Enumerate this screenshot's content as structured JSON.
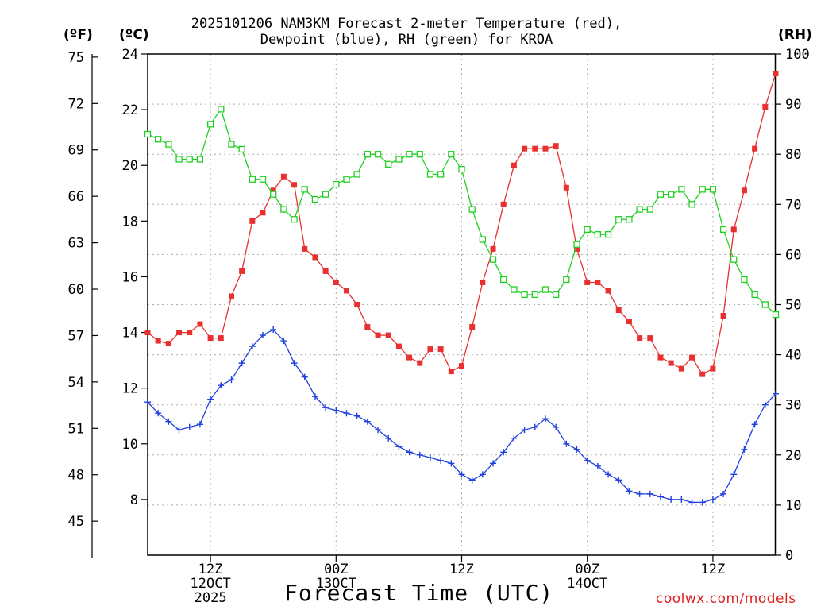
{
  "header": {
    "title_line1": "2025101206 NAM3KM Forecast 2-meter Temperature (red),",
    "title_line2": "Dewpoint (blue), RH (green) for KROA",
    "unit_f": "(ºF)",
    "unit_c": "(ºC)",
    "unit_rh": "(RH)",
    "xlabel": "Forecast Time (UTC)",
    "credit": "coolwx.com/models"
  },
  "chart_data": {
    "type": "line",
    "title": "2025101206 NAM3KM Forecast 2-meter Temperature (red), Dewpoint (blue), RH (green) for KROA",
    "xlabel": "Forecast Time (UTC)",
    "x_unit": "forecast hour from 2025101206",
    "x": [
      0,
      1,
      2,
      3,
      4,
      5,
      6,
      7,
      8,
      9,
      10,
      11,
      12,
      13,
      14,
      15,
      16,
      17,
      18,
      19,
      20,
      21,
      22,
      23,
      24,
      25,
      26,
      27,
      28,
      29,
      30,
      31,
      32,
      33,
      34,
      35,
      36,
      37,
      38,
      39,
      40,
      41,
      42,
      43,
      44,
      45,
      46,
      47,
      48,
      49,
      50,
      51,
      52,
      53,
      54,
      55,
      56,
      57,
      58,
      59,
      60
    ],
    "xlim": [
      0,
      60
    ],
    "grid": true,
    "x_ticks": [
      {
        "x": 6,
        "labels": [
          "12Z",
          "12OCT",
          "2025"
        ]
      },
      {
        "x": 18,
        "labels": [
          "00Z",
          "13OCT"
        ]
      },
      {
        "x": 30,
        "labels": [
          "12Z"
        ]
      },
      {
        "x": 42,
        "labels": [
          "00Z",
          "14OCT"
        ]
      },
      {
        "x": 54,
        "labels": [
          "12Z"
        ]
      }
    ],
    "y_left_c": {
      "label": "(ºC)",
      "lim": [
        6,
        24
      ],
      "ticks": [
        8,
        10,
        12,
        14,
        16,
        18,
        20,
        22,
        24
      ]
    },
    "y_left_f": {
      "label": "(ºF)",
      "ticks": [
        45,
        48,
        51,
        54,
        57,
        60,
        63,
        66,
        69,
        72,
        75
      ]
    },
    "y_right_rh": {
      "label": "(RH)",
      "lim": [
        0,
        100
      ],
      "ticks": [
        0,
        10,
        20,
        30,
        40,
        50,
        60,
        70,
        80,
        90,
        100
      ]
    },
    "series": [
      {
        "name": "2-meter Temperature",
        "axis": "c",
        "color": "#e83030",
        "marker": "filled-square",
        "values": [
          14.0,
          13.7,
          13.6,
          14.0,
          14.0,
          14.3,
          13.8,
          13.8,
          15.3,
          16.2,
          18.0,
          18.3,
          19.1,
          19.6,
          19.3,
          17.0,
          16.7,
          16.2,
          15.8,
          15.5,
          15.0,
          14.2,
          13.9,
          13.9,
          13.5,
          13.1,
          12.9,
          13.4,
          13.4,
          12.6,
          12.8,
          14.2,
          15.8,
          17.0,
          18.6,
          20.0,
          20.6,
          20.6,
          20.6,
          20.7,
          19.2,
          17.0,
          15.8,
          15.8,
          15.5,
          14.8,
          14.4,
          13.8,
          13.8,
          13.1,
          12.9,
          12.7,
          13.1,
          12.5,
          12.7,
          14.6,
          17.7,
          19.1,
          20.6,
          22.1,
          23.3
        ]
      },
      {
        "name": "Dewpoint",
        "axis": "c",
        "color": "#2040e0",
        "marker": "plus",
        "values": [
          11.5,
          11.1,
          10.8,
          10.5,
          10.6,
          10.7,
          11.6,
          12.1,
          12.3,
          12.9,
          13.5,
          13.9,
          14.1,
          13.7,
          12.9,
          12.4,
          11.7,
          11.3,
          11.2,
          11.1,
          11.0,
          10.8,
          10.5,
          10.2,
          9.9,
          9.7,
          9.6,
          9.5,
          9.4,
          9.3,
          8.9,
          8.7,
          8.9,
          9.3,
          9.7,
          10.2,
          10.5,
          10.6,
          10.9,
          10.6,
          10.0,
          9.8,
          9.4,
          9.2,
          8.9,
          8.7,
          8.3,
          8.2,
          8.2,
          8.1,
          8.0,
          8.0,
          7.9,
          7.9,
          8.0,
          8.2,
          8.9,
          9.8,
          10.7,
          11.4,
          11.8
        ]
      },
      {
        "name": "RH",
        "axis": "rh",
        "color": "#20d020",
        "marker": "open-square",
        "values": [
          84,
          83,
          82,
          79,
          79,
          79,
          86,
          89,
          82,
          81,
          75,
          75,
          72,
          69,
          67,
          73,
          71,
          72,
          74,
          75,
          76,
          80,
          80,
          78,
          79,
          80,
          80,
          76,
          76,
          80,
          77,
          69,
          63,
          59,
          55,
          53,
          52,
          52,
          53,
          52,
          55,
          62,
          65,
          64,
          64,
          67,
          67,
          69,
          69,
          72,
          72,
          73,
          70,
          73,
          73,
          65,
          59,
          55,
          52,
          50,
          48
        ]
      }
    ]
  }
}
